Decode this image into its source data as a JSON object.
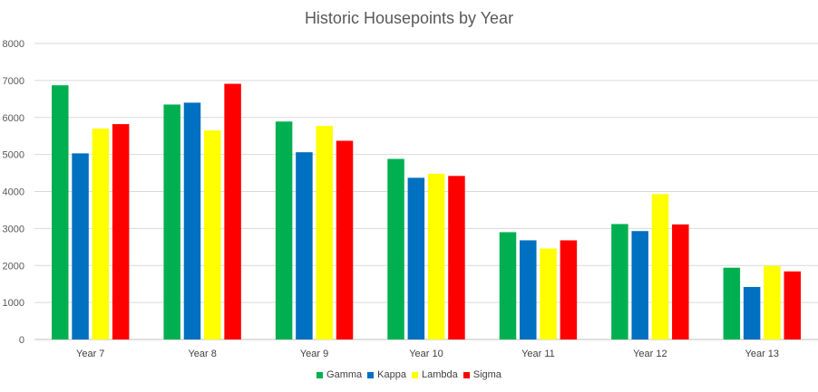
{
  "chart_data": {
    "type": "bar",
    "title": "Historic Housepoints by Year",
    "xlabel": "",
    "ylabel": "",
    "ylim": [
      0,
      8000
    ],
    "yticks": [
      0,
      1000,
      2000,
      3000,
      4000,
      5000,
      6000,
      7000,
      8000
    ],
    "grid": true,
    "legend_position": "bottom",
    "categories": [
      "Year 7",
      "Year 8",
      "Year 9",
      "Year 10",
      "Year 11",
      "Year 12",
      "Year 13"
    ],
    "series": [
      {
        "name": "Gamma",
        "color": "#00b050",
        "values": [
          6870,
          6350,
          5890,
          4880,
          2900,
          3120,
          1940
        ]
      },
      {
        "name": "Kappa",
        "color": "#0070c0",
        "values": [
          5030,
          6400,
          5060,
          4370,
          2680,
          2930,
          1420
        ]
      },
      {
        "name": "Lambda",
        "color": "#ffff00",
        "values": [
          5700,
          5650,
          5770,
          4480,
          2460,
          3930,
          1990
        ]
      },
      {
        "name": "Sigma",
        "color": "#ff0000",
        "values": [
          5820,
          6910,
          5370,
          4420,
          2680,
          3110,
          1840
        ]
      }
    ]
  }
}
